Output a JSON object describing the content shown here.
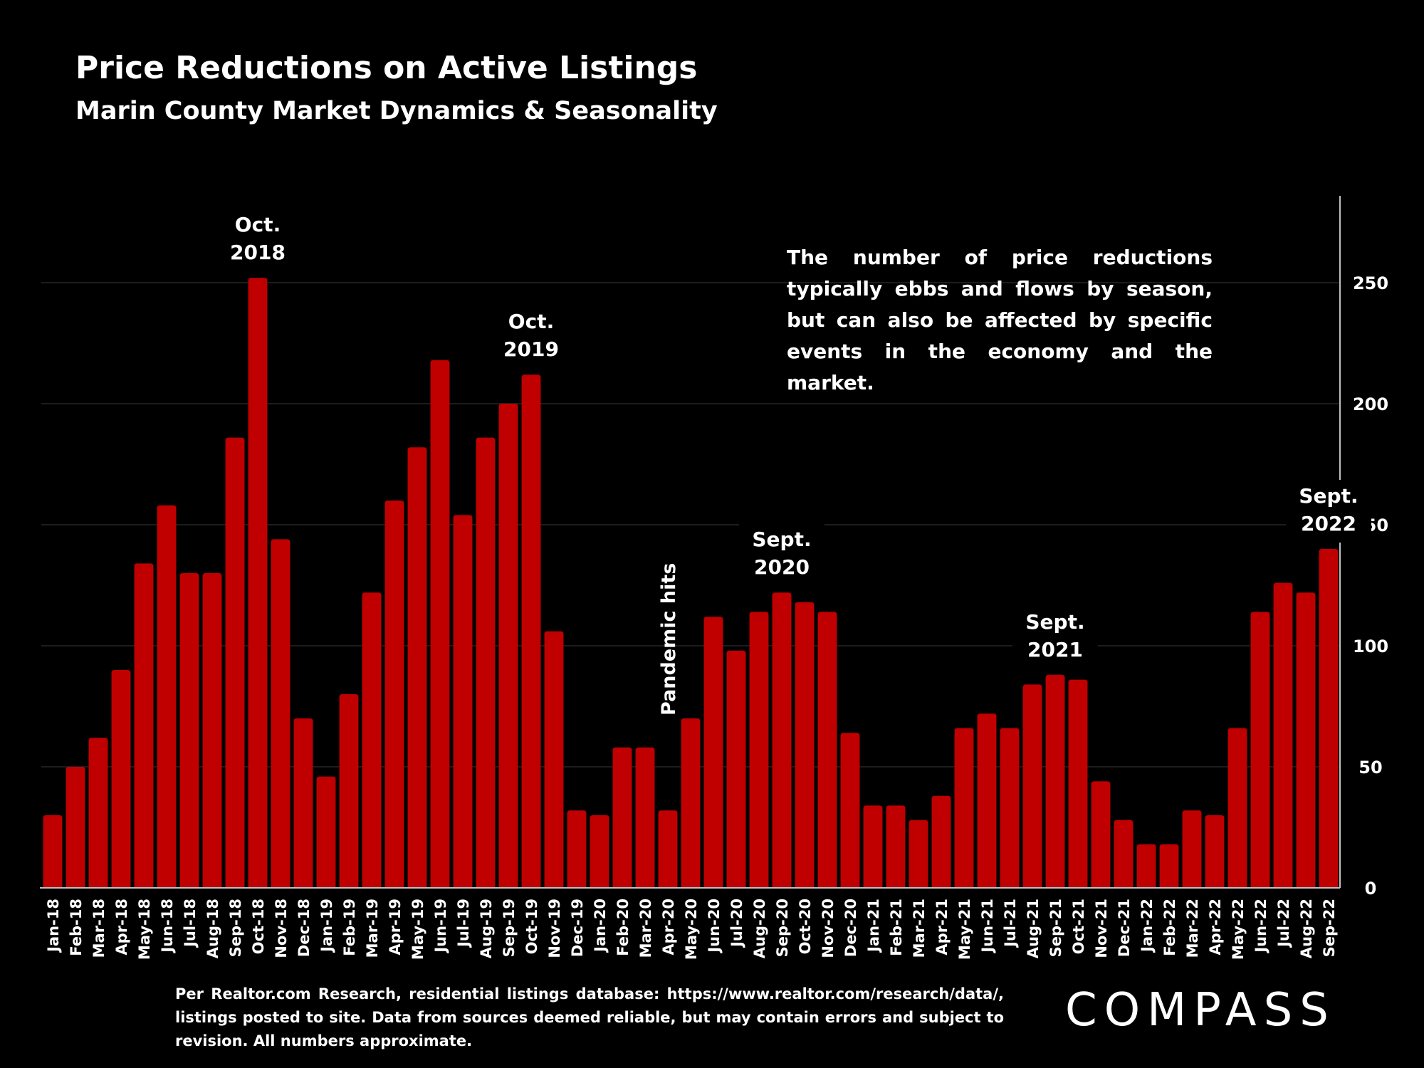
{
  "title": "Price Reductions on Active Listings",
  "subtitle": "Marin County Market Dynamics & Seasonality",
  "note": "The number of price reductions typically ebbs and flows by season, but can also be affected by specific events in the economy and the market.",
  "source": "Per Realtor.com Research, residential listings database: https://www.realtor.com/research/data/, listings posted to site. Data from sources deemed reliable, but may contain errors and subject to revision. All numbers approximate.",
  "logo_text": "COMPASS",
  "colors": {
    "bar": "#C00000",
    "background": "#000000",
    "grid": "#3a3a3a",
    "text": "#FFFFFF"
  },
  "chart_data": {
    "type": "bar",
    "title": "Price Reductions on Active Listings",
    "subtitle": "Marin County Market Dynamics & Seasonality",
    "ylim": [
      0,
      280
    ],
    "yticks": [
      0,
      50,
      100,
      150,
      200,
      250
    ],
    "y_axis_position": "right",
    "grid": true,
    "categories": [
      "Jan-18",
      "Feb-18",
      "Mar-18",
      "Apr-18",
      "May-18",
      "Jun-18",
      "Jul-18",
      "Aug-18",
      "Sep-18",
      "Oct-18",
      "Nov-18",
      "Dec-18",
      "Jan-19",
      "Feb-19",
      "Mar-19",
      "Apr-19",
      "May-19",
      "Jun-19",
      "Jul-19",
      "Aug-19",
      "Sep-19",
      "Oct-19",
      "Nov-19",
      "Dec-19",
      "Jan-20",
      "Feb-20",
      "Mar-20",
      "Apr-20",
      "May-20",
      "Jun-20",
      "Jul-20",
      "Aug-20",
      "Sep-20",
      "Oct-20",
      "Nov-20",
      "Dec-20",
      "Jan-21",
      "Feb-21",
      "Mar-21",
      "Apr-21",
      "May-21",
      "Jun-21",
      "Jul-21",
      "Aug-21",
      "Sep-21",
      "Oct-21",
      "Nov-21",
      "Dec-21",
      "Jan-22",
      "Feb-22",
      "Mar-22",
      "Apr-22",
      "May-22",
      "Jun-22",
      "Jul-22",
      "Aug-22",
      "Sep-22"
    ],
    "values": [
      30,
      50,
      62,
      90,
      134,
      158,
      130,
      130,
      186,
      252,
      144,
      70,
      46,
      80,
      122,
      160,
      182,
      218,
      154,
      186,
      200,
      212,
      106,
      32,
      30,
      58,
      58,
      32,
      70,
      112,
      98,
      114,
      122,
      118,
      114,
      64,
      34,
      34,
      28,
      38,
      66,
      72,
      66,
      84,
      88,
      86,
      44,
      28,
      18,
      18,
      32,
      30,
      66,
      114,
      126,
      122,
      140
    ],
    "annotations": [
      {
        "category": "Oct-18",
        "lines": [
          "Oct.",
          "2018"
        ]
      },
      {
        "category": "Oct-19",
        "lines": [
          "Oct.",
          "2019"
        ]
      },
      {
        "category": "Sep-20",
        "lines": [
          "Sept.",
          "2020"
        ]
      },
      {
        "category": "Sep-21",
        "lines": [
          "Sept.",
          "2021"
        ]
      },
      {
        "category": "Sep-22",
        "lines": [
          "Sept.",
          "2022"
        ]
      },
      {
        "category": "Apr-20",
        "lines": [
          "Pandemic hits"
        ],
        "rotated": true
      }
    ]
  }
}
